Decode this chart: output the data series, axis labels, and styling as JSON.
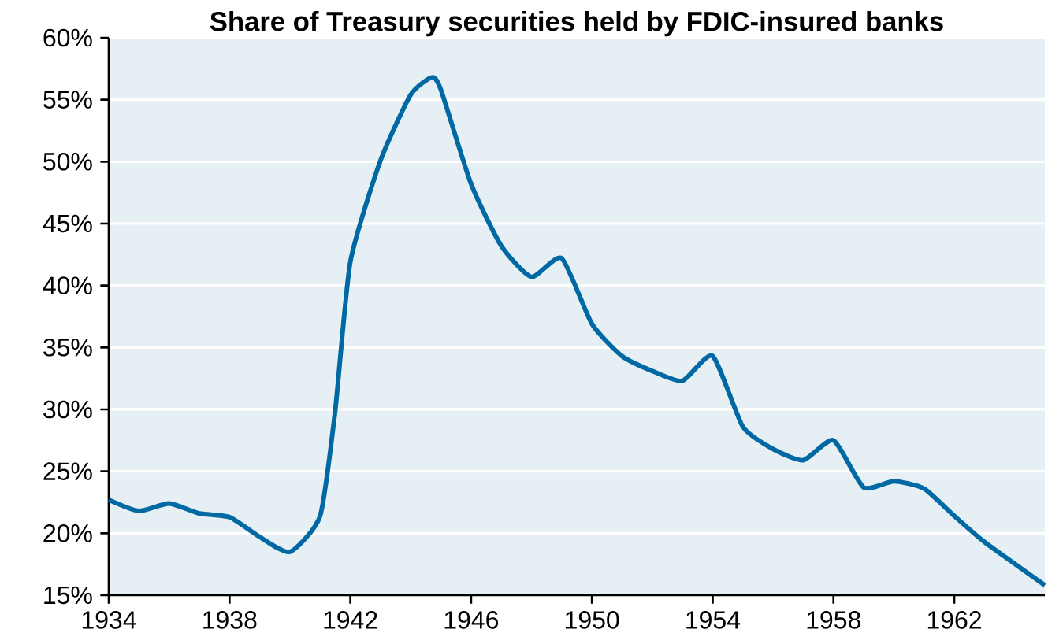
{
  "chart_data": {
    "type": "line",
    "title": "Share of Treasury securities held by FDIC-insured banks",
    "x": [
      1934,
      1935,
      1936,
      1937,
      1938,
      1939,
      1940,
      1941,
      1941.5,
      1942,
      1943,
      1944,
      1944.7,
      1945,
      1946,
      1947,
      1948,
      1949,
      1950,
      1951,
      1952,
      1953,
      1954,
      1955,
      1956,
      1957,
      1958,
      1959,
      1960,
      1961,
      1962,
      1963,
      1965
    ],
    "series": [
      {
        "color": "#0068a3",
        "values": [
          22.7,
          21.8,
          22.4,
          21.6,
          21.3,
          19.7,
          18.5,
          21.4,
          29.9,
          41.9,
          50.1,
          55.4,
          56.8,
          55.8,
          48.2,
          43.2,
          40.7,
          42.2,
          36.9,
          34.3,
          33.1,
          32.3,
          34.3,
          28.6,
          26.8,
          25.9,
          27.5,
          23.7,
          24.2,
          23.6,
          21.4,
          19.3,
          15.8
        ]
      }
    ],
    "xlim": [
      1934,
      1965
    ],
    "xticks": [
      1934,
      1938,
      1942,
      1946,
      1950,
      1954,
      1958,
      1962
    ],
    "ylim": [
      15,
      60
    ],
    "yticks": [
      {
        "value": 15,
        "label": "15%"
      },
      {
        "value": 20,
        "label": "20%"
      },
      {
        "value": 25,
        "label": "25%"
      },
      {
        "value": 30,
        "label": "30%"
      },
      {
        "value": 35,
        "label": "35%"
      },
      {
        "value": 40,
        "label": "40%"
      },
      {
        "value": 45,
        "label": "45%"
      },
      {
        "value": 50,
        "label": "50%"
      },
      {
        "value": 55,
        "label": "55%"
      },
      {
        "value": 60,
        "label": "60%"
      }
    ],
    "grid": "y",
    "line_style": "solid"
  }
}
